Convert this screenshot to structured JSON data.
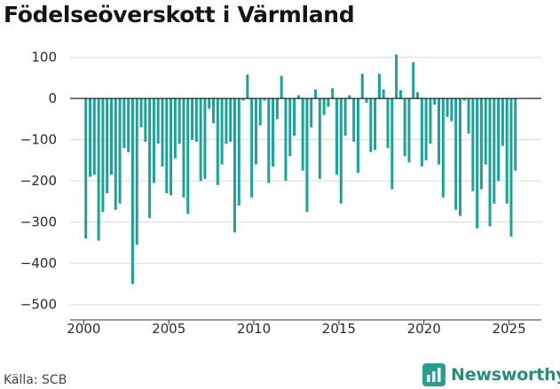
{
  "title": "Födelseöverskott i Värmland",
  "source": "Källa: SCB",
  "brand": {
    "name": "Newsworthy",
    "icon": "newsworthy-logo-icon",
    "color": "#2a9d8f"
  },
  "chart_data": {
    "type": "bar",
    "title": "Födelseöverskott i Värmland",
    "xlabel": "",
    "ylabel": "",
    "bar_color": "#17a398",
    "grid": true,
    "legend": "none",
    "xlim": [
      1999.2,
      2026.9
    ],
    "ylim": [
      -520,
      110
    ],
    "x_ticks": [
      2000,
      2005,
      2010,
      2015,
      2020,
      2025
    ],
    "y_ticks": [
      100,
      0,
      -100,
      -200,
      -300,
      -400,
      -500
    ],
    "y_tick_labels": [
      "100",
      "0",
      "−100",
      "−200",
      "−300",
      "−400",
      "−500"
    ],
    "x_tick_labels": [
      "2000",
      "2005",
      "2010",
      "2015",
      "2020",
      "2025"
    ],
    "frequency": "quarterly",
    "x": [
      2000.125,
      2000.375,
      2000.625,
      2000.875,
      2001.125,
      2001.375,
      2001.625,
      2001.875,
      2002.125,
      2002.375,
      2002.625,
      2002.875,
      2003.125,
      2003.375,
      2003.625,
      2003.875,
      2004.125,
      2004.375,
      2004.625,
      2004.875,
      2005.125,
      2005.375,
      2005.625,
      2005.875,
      2006.125,
      2006.375,
      2006.625,
      2006.875,
      2007.125,
      2007.375,
      2007.625,
      2007.875,
      2008.125,
      2008.375,
      2008.625,
      2008.875,
      2009.125,
      2009.375,
      2009.625,
      2009.875,
      2010.125,
      2010.375,
      2010.625,
      2010.875,
      2011.125,
      2011.375,
      2011.625,
      2011.875,
      2012.125,
      2012.375,
      2012.625,
      2012.875,
      2013.125,
      2013.375,
      2013.625,
      2013.875,
      2014.125,
      2014.375,
      2014.625,
      2014.875,
      2015.125,
      2015.375,
      2015.625,
      2015.875,
      2016.125,
      2016.375,
      2016.625,
      2016.875,
      2017.125,
      2017.375,
      2017.625,
      2017.875,
      2018.125,
      2018.375,
      2018.625,
      2018.875,
      2019.125,
      2019.375,
      2019.625,
      2019.875,
      2020.125,
      2020.375,
      2020.625,
      2020.875,
      2021.125,
      2021.375,
      2021.625,
      2021.875,
      2022.125,
      2022.375,
      2022.625,
      2022.875,
      2023.125,
      2023.375,
      2023.625,
      2023.875,
      2024.125,
      2024.375,
      2024.625,
      2024.875,
      2025.125,
      2025.375
    ],
    "values": [
      -340,
      -190,
      -185,
      -345,
      -275,
      -230,
      -185,
      -270,
      -255,
      -120,
      -130,
      -450,
      -355,
      -70,
      -105,
      -290,
      -205,
      -110,
      -165,
      -230,
      -235,
      -145,
      -110,
      -240,
      -280,
      -100,
      -105,
      -200,
      -195,
      -25,
      -60,
      -210,
      -160,
      -110,
      -105,
      -325,
      -260,
      -5,
      58,
      -240,
      -160,
      -65,
      -5,
      -205,
      -165,
      -50,
      55,
      -200,
      -140,
      -90,
      8,
      -175,
      -275,
      -70,
      22,
      -195,
      -40,
      -20,
      25,
      -185,
      -255,
      -90,
      8,
      -105,
      -180,
      60,
      -10,
      -130,
      -125,
      60,
      22,
      -120,
      -220,
      107,
      20,
      -140,
      -155,
      88,
      15,
      -165,
      -150,
      -110,
      -15,
      -160,
      -240,
      -45,
      -55,
      -270,
      -285,
      -5,
      -85,
      -225,
      -315,
      -220,
      -160,
      -310,
      -255,
      -200,
      -115,
      -255,
      -335,
      -175
    ]
  }
}
